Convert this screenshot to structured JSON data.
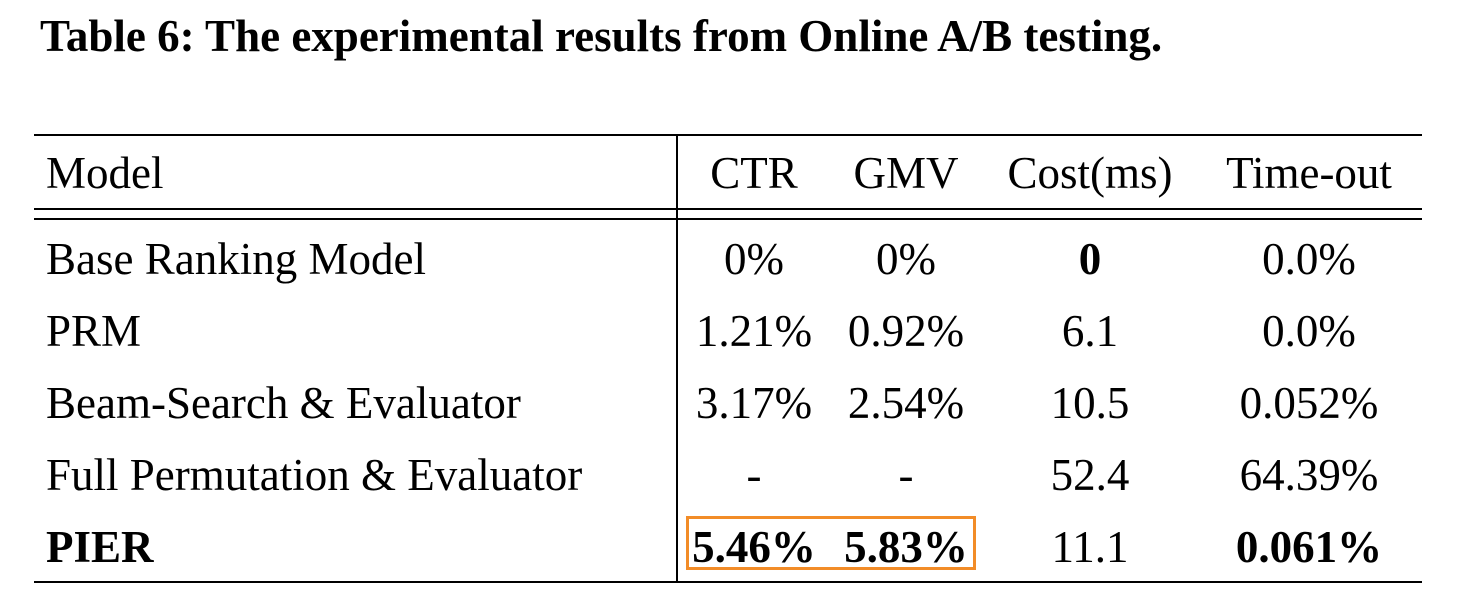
{
  "caption": "Table 6: The experimental results from Online A/B testing.",
  "table": {
    "headers": {
      "model": "Model",
      "ctr": "CTR",
      "gmv": "GMV",
      "cost": "Cost(ms)",
      "timeout": "Time-out"
    },
    "rows": [
      {
        "model": "Base Ranking Model",
        "ctr": "0%",
        "gmv": "0%",
        "cost": "0",
        "timeout": "0.0%"
      },
      {
        "model": "PRM",
        "ctr": "1.21%",
        "gmv": "0.92%",
        "cost": "6.1",
        "timeout": "0.0%"
      },
      {
        "model": "Beam-Search & Evaluator",
        "ctr": "3.17%",
        "gmv": "2.54%",
        "cost": "10.5",
        "timeout": "0.052%"
      },
      {
        "model": "Full Permutation & Evaluator",
        "ctr": "-",
        "gmv": "-",
        "cost": "52.4",
        "timeout": "64.39%"
      },
      {
        "model": "PIER",
        "ctr": "5.46%",
        "gmv": "5.83%",
        "cost": "11.1",
        "timeout": "0.061%"
      }
    ],
    "bold_cells": [
      "rows.0.cost",
      "rows.4.model",
      "rows.4.ctr",
      "rows.4.gmv",
      "rows.4.timeout"
    ],
    "highlight_color": "#f28c28"
  }
}
